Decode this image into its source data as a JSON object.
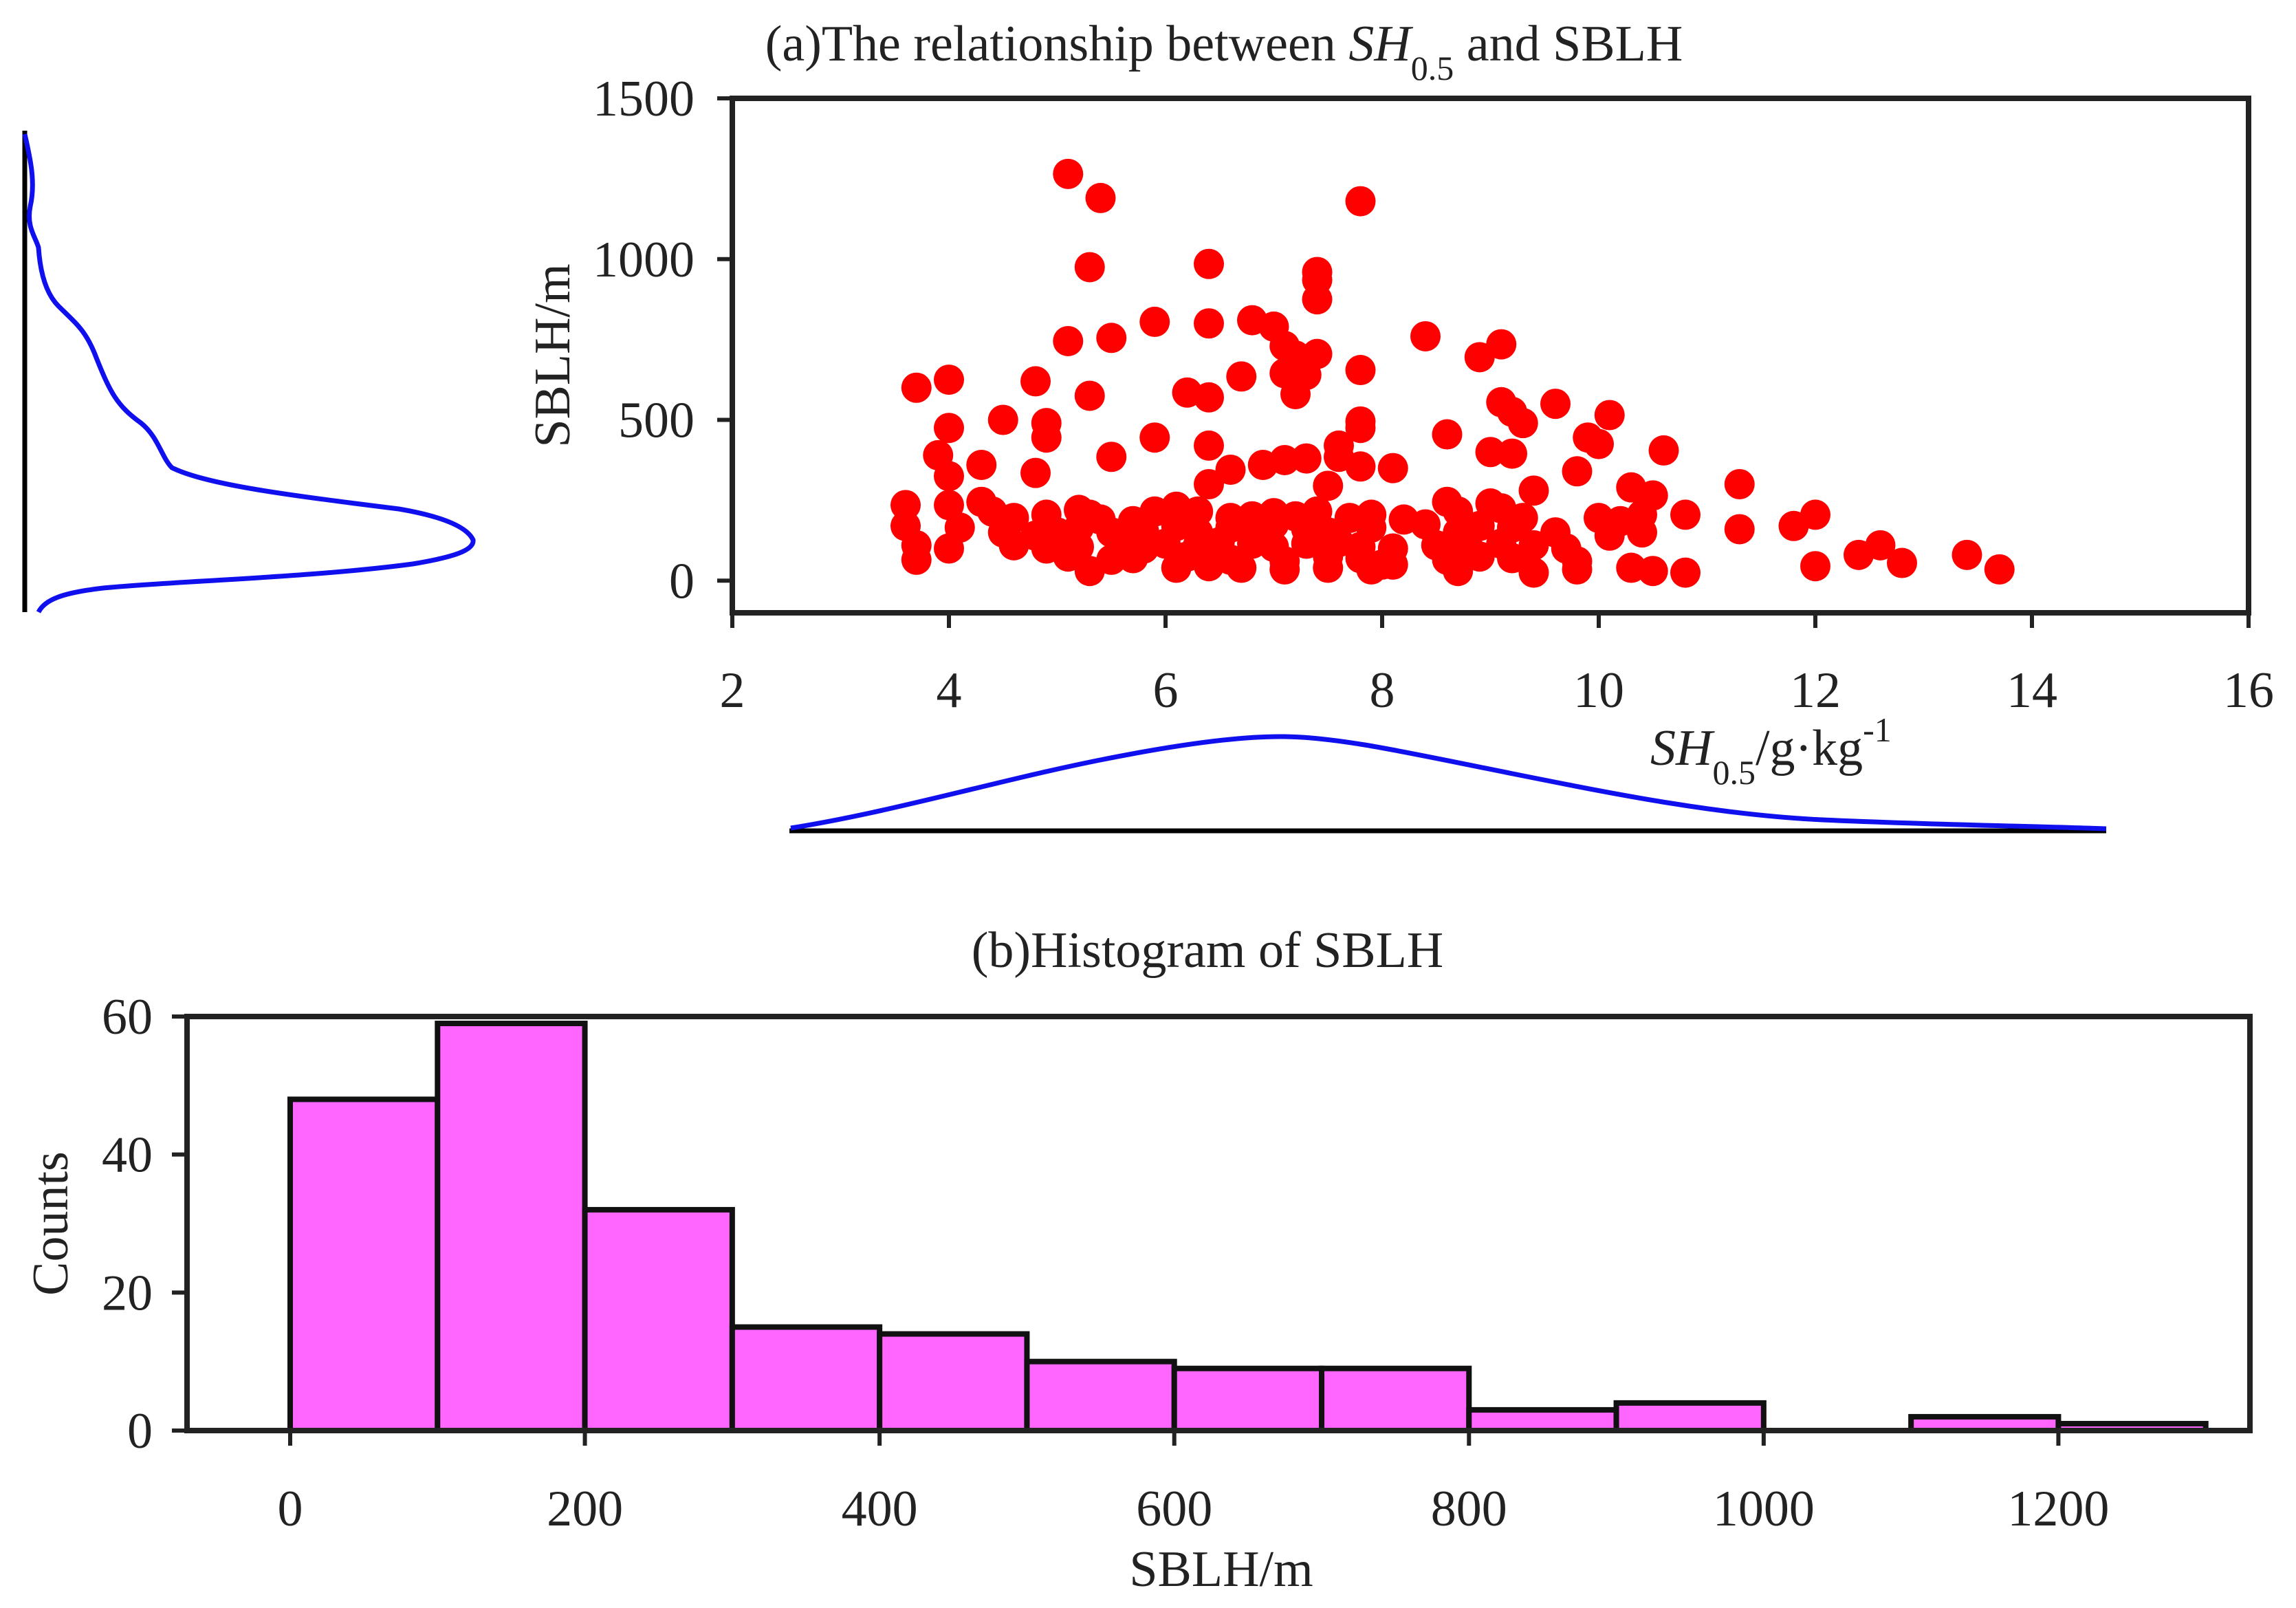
{
  "chart_data": [
    {
      "id": "a",
      "type": "scatter",
      "title": {
        "prefix": "(a)The relationship between ",
        "var": "SH",
        "sub": "0.5",
        "suffix": " and SBLH"
      },
      "xlabel": {
        "var": "SH",
        "sub": "0.5",
        "units": "/g·kg",
        "sup": "-1"
      },
      "ylabel": "SBLH/m",
      "xlim": [
        2,
        16
      ],
      "ylim": [
        -100,
        1500
      ],
      "xticks": [
        2,
        4,
        6,
        8,
        10,
        12,
        14,
        16
      ],
      "yticks": [
        0,
        500,
        1000,
        1500
      ],
      "point_color": "#ff0000",
      "points": [
        [
          5.1,
          1265
        ],
        [
          5.4,
          1190
        ],
        [
          7.8,
          1180
        ],
        [
          5.3,
          975
        ],
        [
          6.4,
          985
        ],
        [
          7.4,
          960
        ],
        [
          7.4,
          935
        ],
        [
          7.4,
          875
        ],
        [
          5.9,
          805
        ],
        [
          6.4,
          800
        ],
        [
          6.8,
          810
        ],
        [
          7.0,
          790
        ],
        [
          5.1,
          745
        ],
        [
          5.5,
          755
        ],
        [
          7.1,
          730
        ],
        [
          7.2,
          700
        ],
        [
          7.4,
          705
        ],
        [
          8.4,
          760
        ],
        [
          9.1,
          735
        ],
        [
          8.9,
          695
        ],
        [
          7.1,
          645
        ],
        [
          7.3,
          640
        ],
        [
          6.7,
          635
        ],
        [
          7.8,
          655
        ],
        [
          3.7,
          600
        ],
        [
          4.0,
          625
        ],
        [
          4.8,
          620
        ],
        [
          6.2,
          585
        ],
        [
          6.4,
          570
        ],
        [
          5.3,
          575
        ],
        [
          7.2,
          580
        ],
        [
          9.1,
          555
        ],
        [
          9.6,
          550
        ],
        [
          9.2,
          525
        ],
        [
          10.1,
          515
        ],
        [
          4.0,
          475
        ],
        [
          4.5,
          500
        ],
        [
          4.9,
          490
        ],
        [
          4.9,
          445
        ],
        [
          5.9,
          445
        ],
        [
          7.8,
          495
        ],
        [
          7.8,
          475
        ],
        [
          8.6,
          455
        ],
        [
          9.3,
          490
        ],
        [
          9.9,
          445
        ],
        [
          10.0,
          425
        ],
        [
          10.6,
          405
        ],
        [
          3.9,
          390
        ],
        [
          5.5,
          385
        ],
        [
          6.4,
          420
        ],
        [
          7.6,
          420
        ],
        [
          7.6,
          385
        ],
        [
          7.3,
          380
        ],
        [
          7.1,
          375
        ],
        [
          6.9,
          360
        ],
        [
          6.6,
          345
        ],
        [
          7.8,
          355
        ],
        [
          8.1,
          350
        ],
        [
          9.0,
          400
        ],
        [
          9.2,
          395
        ],
        [
          9.8,
          340
        ],
        [
          4.0,
          325
        ],
        [
          4.3,
          360
        ],
        [
          4.8,
          335
        ],
        [
          6.4,
          300
        ],
        [
          7.5,
          295
        ],
        [
          10.3,
          290
        ],
        [
          10.5,
          265
        ],
        [
          11.3,
          300
        ],
        [
          3.6,
          235
        ],
        [
          4.0,
          235
        ],
        [
          4.3,
          245
        ],
        [
          4.4,
          215
        ],
        [
          4.6,
          195
        ],
        [
          4.9,
          205
        ],
        [
          5.2,
          220
        ],
        [
          5.3,
          205
        ],
        [
          5.4,
          190
        ],
        [
          5.7,
          185
        ],
        [
          5.9,
          215
        ],
        [
          6.1,
          230
        ],
        [
          6.3,
          215
        ],
        [
          6.6,
          195
        ],
        [
          6.8,
          200
        ],
        [
          7.0,
          210
        ],
        [
          7.2,
          200
        ],
        [
          7.4,
          215
        ],
        [
          7.7,
          195
        ],
        [
          7.9,
          205
        ],
        [
          8.2,
          190
        ],
        [
          8.6,
          245
        ],
        [
          8.7,
          215
        ],
        [
          9.0,
          240
        ],
        [
          9.1,
          225
        ],
        [
          9.3,
          195
        ],
        [
          9.4,
          280
        ],
        [
          10.0,
          195
        ],
        [
          10.2,
          185
        ],
        [
          10.4,
          205
        ],
        [
          10.8,
          205
        ],
        [
          11.8,
          170
        ],
        [
          12.0,
          205
        ],
        [
          3.6,
          170
        ],
        [
          4.1,
          165
        ],
        [
          4.5,
          150
        ],
        [
          4.8,
          140
        ],
        [
          5.0,
          150
        ],
        [
          5.2,
          165
        ],
        [
          5.5,
          150
        ],
        [
          5.8,
          155
        ],
        [
          6.1,
          170
        ],
        [
          6.3,
          150
        ],
        [
          6.6,
          165
        ],
        [
          6.8,
          155
        ],
        [
          7.0,
          175
        ],
        [
          7.3,
          160
        ],
        [
          7.5,
          150
        ],
        [
          7.9,
          165
        ],
        [
          8.4,
          175
        ],
        [
          8.7,
          150
        ],
        [
          8.9,
          170
        ],
        [
          9.2,
          165
        ],
        [
          9.6,
          150
        ],
        [
          10.1,
          140
        ],
        [
          10.4,
          150
        ],
        [
          11.3,
          160
        ],
        [
          3.7,
          110
        ],
        [
          4.0,
          100
        ],
        [
          4.6,
          110
        ],
        [
          4.9,
          100
        ],
        [
          5.2,
          105
        ],
        [
          5.6,
          110
        ],
        [
          5.8,
          100
        ],
        [
          6.0,
          115
        ],
        [
          6.3,
          110
        ],
        [
          6.5,
          120
        ],
        [
          6.8,
          115
        ],
        [
          7.0,
          105
        ],
        [
          7.3,
          115
        ],
        [
          7.6,
          120
        ],
        [
          7.8,
          105
        ],
        [
          8.1,
          100
        ],
        [
          8.5,
          110
        ],
        [
          8.8,
          100
        ],
        [
          9.1,
          115
        ],
        [
          9.4,
          110
        ],
        [
          9.7,
          100
        ],
        [
          12.4,
          80
        ],
        [
          12.6,
          110
        ],
        [
          13.4,
          80
        ],
        [
          3.7,
          65
        ],
        [
          5.1,
          75
        ],
        [
          5.5,
          65
        ],
        [
          5.7,
          70
        ],
        [
          6.2,
          75
        ],
        [
          6.6,
          65
        ],
        [
          7.1,
          60
        ],
        [
          7.5,
          75
        ],
        [
          7.8,
          70
        ],
        [
          8.0,
          50
        ],
        [
          8.6,
          65
        ],
        [
          8.9,
          75
        ],
        [
          9.2,
          70
        ],
        [
          9.8,
          60
        ],
        [
          5.3,
          30
        ],
        [
          6.1,
          40
        ],
        [
          6.4,
          45
        ],
        [
          6.7,
          40
        ],
        [
          7.1,
          35
        ],
        [
          7.5,
          40
        ],
        [
          7.9,
          35
        ],
        [
          8.1,
          50
        ],
        [
          8.7,
          30
        ],
        [
          9.4,
          25
        ],
        [
          9.8,
          35
        ],
        [
          10.3,
          40
        ],
        [
          10.5,
          30
        ],
        [
          10.8,
          25
        ],
        [
          12.0,
          45
        ],
        [
          12.8,
          55
        ],
        [
          13.7,
          35
        ]
      ]
    },
    {
      "id": "b",
      "type": "bar",
      "title": "(b)Histogram of SBLH",
      "xlabel": "SBLH/m",
      "ylabel": "Counts",
      "xlim": [
        -70,
        1330
      ],
      "ylim": [
        0,
        60
      ],
      "xticks": [
        0,
        200,
        400,
        600,
        800,
        1000,
        1200
      ],
      "yticks": [
        0,
        20,
        40,
        60
      ],
      "bin_width": 100,
      "bar_color": "#ff66ff",
      "bins": [
        {
          "start": 0,
          "count": 48
        },
        {
          "start": 100,
          "count": 59
        },
        {
          "start": 200,
          "count": 32
        },
        {
          "start": 300,
          "count": 15
        },
        {
          "start": 400,
          "count": 14
        },
        {
          "start": 500,
          "count": 10
        },
        {
          "start": 600,
          "count": 9
        },
        {
          "start": 700,
          "count": 9
        },
        {
          "start": 800,
          "count": 3
        },
        {
          "start": 900,
          "count": 4
        },
        {
          "start": 1000,
          "count": 0
        },
        {
          "start": 1100,
          "count": 2
        },
        {
          "start": 1200,
          "count": 1
        }
      ]
    }
  ],
  "marginals": {
    "color": "#1010ee",
    "note_x_density": "kernel density of SH0.5 drawn under panel (a)",
    "note_y_density": "kernel density of SBLH drawn left of panel (a)"
  }
}
